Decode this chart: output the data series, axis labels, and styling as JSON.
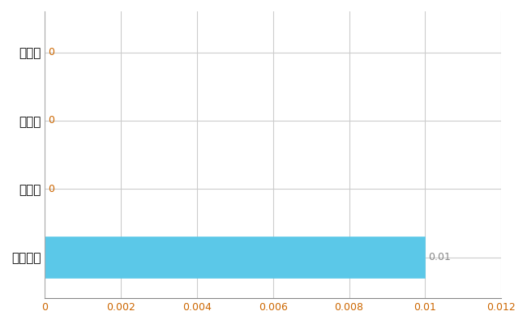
{
  "categories": [
    "全国平均",
    "県最大",
    "県平均",
    "荒川区"
  ],
  "values": [
    0.01,
    0,
    0,
    0
  ],
  "bar_color": "#5bc8e8",
  "bar_edge_color": "#5bc8e8",
  "value_labels": [
    "0.01",
    "0",
    "0",
    "0"
  ],
  "xlim": [
    0,
    0.012
  ],
  "xticks": [
    0,
    0.002,
    0.004,
    0.006,
    0.008,
    0.01,
    0.012
  ],
  "grid_color": "#cccccc",
  "background_color": "#ffffff",
  "tick_label_color_x": "#cc6600",
  "tick_label_color_y": "#000000",
  "value_label_color_orange": "#cc6600",
  "value_label_color_gray": "#888888",
  "bar_height": 0.6,
  "figsize": [
    6.5,
    4.0
  ],
  "dpi": 100
}
